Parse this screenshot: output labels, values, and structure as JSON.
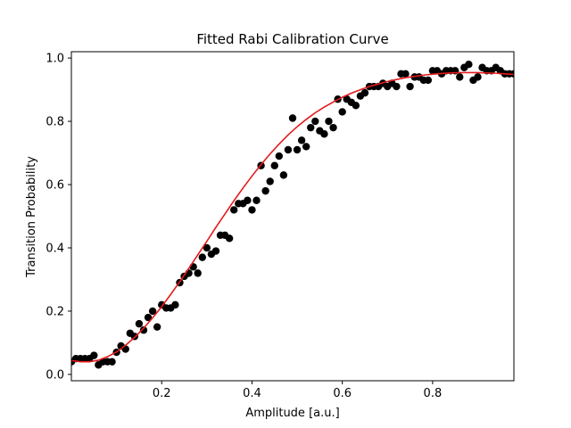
{
  "chart_data": {
    "type": "scatter",
    "title": "Fitted Rabi Calibration Curve",
    "xlabel": "Amplitude [a.u.]",
    "ylabel": "Transition Probability",
    "xlim": [
      0.0,
      0.98
    ],
    "ylim": [
      -0.02,
      1.02
    ],
    "xticks": [
      0.2,
      0.4,
      0.6,
      0.8
    ],
    "xtick_labels": [
      "0.2",
      "0.4",
      "0.6",
      "0.8"
    ],
    "yticks": [
      0.0,
      0.2,
      0.4,
      0.6,
      0.8,
      1.0
    ],
    "ytick_labels": [
      "0.0",
      "0.2",
      "0.4",
      "0.6",
      "0.8",
      "1.0"
    ],
    "grid": false,
    "series": [
      {
        "kind": "scatter",
        "color": "#000000",
        "x": [
          0.0,
          0.01,
          0.02,
          0.03,
          0.04,
          0.05,
          0.06,
          0.07,
          0.08,
          0.09,
          0.1,
          0.11,
          0.12,
          0.13,
          0.14,
          0.15,
          0.16,
          0.17,
          0.18,
          0.19,
          0.2,
          0.21,
          0.22,
          0.23,
          0.24,
          0.25,
          0.26,
          0.27,
          0.28,
          0.29,
          0.3,
          0.31,
          0.32,
          0.33,
          0.34,
          0.35,
          0.36,
          0.37,
          0.38,
          0.39,
          0.4,
          0.41,
          0.42,
          0.43,
          0.44,
          0.45,
          0.46,
          0.47,
          0.48,
          0.49,
          0.5,
          0.51,
          0.52,
          0.53,
          0.54,
          0.55,
          0.56,
          0.57,
          0.58,
          0.59,
          0.6,
          0.61,
          0.62,
          0.63,
          0.64,
          0.65,
          0.66,
          0.67,
          0.68,
          0.69,
          0.7,
          0.71,
          0.72,
          0.73,
          0.74,
          0.75,
          0.76,
          0.77,
          0.78,
          0.79,
          0.8,
          0.81,
          0.82,
          0.83,
          0.84,
          0.85,
          0.86,
          0.87,
          0.88,
          0.89,
          0.9,
          0.91,
          0.92,
          0.93,
          0.94,
          0.95,
          0.96,
          0.97,
          0.98
        ],
        "y": [
          0.04,
          0.05,
          0.05,
          0.05,
          0.05,
          0.06,
          0.03,
          0.04,
          0.04,
          0.04,
          0.07,
          0.09,
          0.08,
          0.13,
          0.12,
          0.16,
          0.14,
          0.18,
          0.2,
          0.15,
          0.22,
          0.21,
          0.21,
          0.22,
          0.29,
          0.31,
          0.32,
          0.34,
          0.32,
          0.37,
          0.4,
          0.38,
          0.39,
          0.44,
          0.44,
          0.43,
          0.52,
          0.54,
          0.54,
          0.55,
          0.52,
          0.55,
          0.66,
          0.58,
          0.61,
          0.66,
          0.69,
          0.63,
          0.71,
          0.81,
          0.71,
          0.74,
          0.72,
          0.78,
          0.8,
          0.77,
          0.76,
          0.8,
          0.78,
          0.87,
          0.83,
          0.87,
          0.86,
          0.85,
          0.88,
          0.89,
          0.91,
          0.91,
          0.91,
          0.92,
          0.91,
          0.92,
          0.91,
          0.95,
          0.95,
          0.91,
          0.94,
          0.94,
          0.93,
          0.93,
          0.96,
          0.96,
          0.95,
          0.96,
          0.96,
          0.96,
          0.94,
          0.97,
          0.98,
          0.93,
          0.94,
          0.97,
          0.96,
          0.96,
          0.97,
          0.96,
          0.95,
          0.95,
          0.95
        ]
      },
      {
        "kind": "line",
        "color": "#e31a1c",
        "x": [
          0.0,
          0.02,
          0.04,
          0.06,
          0.08,
          0.1,
          0.12,
          0.14,
          0.16,
          0.18,
          0.2,
          0.22,
          0.24,
          0.26,
          0.28,
          0.3,
          0.32,
          0.34,
          0.36,
          0.38,
          0.4,
          0.42,
          0.44,
          0.46,
          0.48,
          0.5,
          0.52,
          0.54,
          0.56,
          0.58,
          0.6,
          0.62,
          0.64,
          0.66,
          0.68,
          0.7,
          0.72,
          0.74,
          0.76,
          0.78,
          0.8,
          0.82,
          0.84,
          0.86,
          0.88,
          0.9,
          0.92,
          0.94,
          0.96,
          0.98
        ],
        "y": [
          0.044,
          0.04,
          0.04,
          0.045,
          0.056,
          0.071,
          0.092,
          0.117,
          0.146,
          0.179,
          0.214,
          0.253,
          0.293,
          0.335,
          0.378,
          0.421,
          0.465,
          0.507,
          0.549,
          0.589,
          0.627,
          0.663,
          0.697,
          0.728,
          0.757,
          0.783,
          0.806,
          0.827,
          0.845,
          0.861,
          0.876,
          0.889,
          0.9,
          0.91,
          0.918,
          0.926,
          0.932,
          0.938,
          0.942,
          0.946,
          0.949,
          0.951,
          0.953,
          0.954,
          0.954,
          0.954,
          0.953,
          0.952,
          0.95,
          0.948
        ]
      }
    ]
  }
}
